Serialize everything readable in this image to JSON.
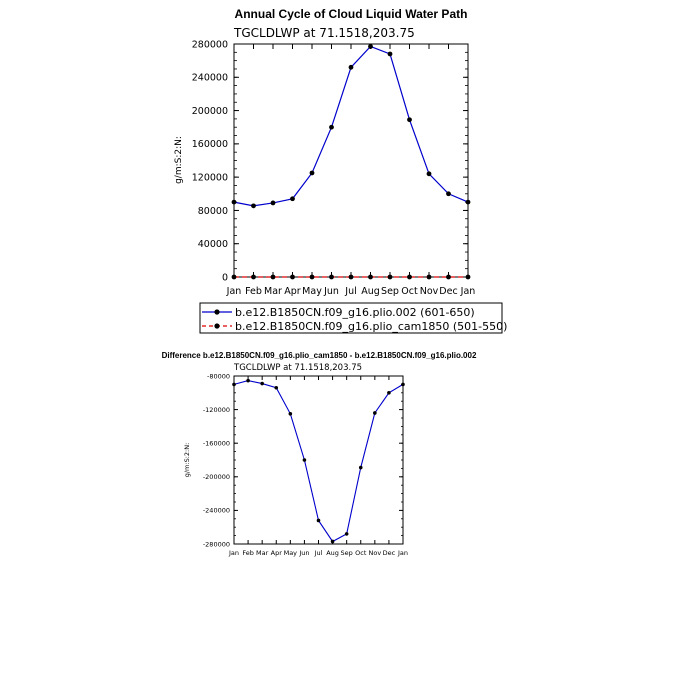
{
  "charts": [
    {
      "title": "Annual Cycle of Cloud Liquid Water Path",
      "subtitle": "TGCLDLWP at 71.1518,203.75",
      "ylabel": "g/m:S:2:N:",
      "chart_type": "line",
      "ylim": [
        0,
        280000
      ],
      "yticks": [
        "0",
        "40000",
        "80000",
        "120000",
        "160000",
        "200000",
        "240000",
        "280000"
      ],
      "yticks_values": [
        0,
        40000,
        80000,
        120000,
        160000,
        200000,
        240000,
        280000
      ],
      "categories": [
        "Jan",
        "Feb",
        "Mar",
        "Apr",
        "May",
        "Jun",
        "Jul",
        "Aug",
        "Sep",
        "Oct",
        "Nov",
        "Dec",
        "Jan"
      ],
      "series": [
        {
          "name": "b.e12.B1850CN.f09_g16.plio.002 (601-650)",
          "color": "#0000cc",
          "dash": "none",
          "values": [
            90000,
            85500,
            89000,
            94000,
            125000,
            180000,
            252000,
            277000,
            268000,
            189000,
            124000,
            100000,
            90000
          ]
        },
        {
          "name": "b.e12.B1850CN.f09_g16.plio_cam1850 (501-550)",
          "color": "#dd0000",
          "dash": "dashed",
          "values": [
            0,
            0,
            0,
            0,
            0,
            0,
            0,
            0,
            0,
            0,
            0,
            0,
            0
          ]
        }
      ]
    },
    {
      "title": "Difference b.e12.B1850CN.f09_g16.plio_cam1850 - b.e12.B1850CN.f09_g16.plio.002",
      "subtitle": "TGCLDLWP at 71.1518,203.75",
      "ylabel": "g/m:S:2:N:",
      "chart_type": "line",
      "ylim": [
        -280000,
        -80000
      ],
      "yticks": [
        "-80000",
        "-120000",
        "-160000",
        "-200000",
        "-240000",
        "-280000"
      ],
      "yticks_values": [
        -80000,
        -120000,
        -160000,
        -200000,
        -240000,
        -280000
      ],
      "categories": [
        "Jan",
        "Feb",
        "Mar",
        "Apr",
        "May",
        "Jun",
        "Jul",
        "Aug",
        "Sep",
        "Oct",
        "Nov",
        "Dec",
        "Jan"
      ],
      "series": [
        {
          "name": "",
          "color": "#0000cc",
          "dash": "none",
          "values": [
            -90000,
            -85500,
            -89000,
            -94000,
            -125000,
            -180000,
            -252000,
            -277000,
            -268000,
            -189000,
            -124000,
            -100000,
            -90000
          ]
        }
      ]
    }
  ],
  "chart_data": [
    {
      "type": "line",
      "title": "Annual Cycle of Cloud Liquid Water Path",
      "subtitle": "TGCLDLWP at 71.1518,203.75",
      "xlabel": "",
      "ylabel": "g/m:S:2:N:",
      "ylim": [
        0,
        280000
      ],
      "categories": [
        "Jan",
        "Feb",
        "Mar",
        "Apr",
        "May",
        "Jun",
        "Jul",
        "Aug",
        "Sep",
        "Oct",
        "Nov",
        "Dec",
        "Jan"
      ],
      "series": [
        {
          "name": "b.e12.B1850CN.f09_g16.plio.002 (601-650)",
          "values": [
            90000,
            85500,
            89000,
            94000,
            125000,
            180000,
            252000,
            277000,
            268000,
            189000,
            124000,
            100000,
            90000
          ]
        },
        {
          "name": "b.e12.B1850CN.f09_g16.plio_cam1850 (501-550)",
          "values": [
            0,
            0,
            0,
            0,
            0,
            0,
            0,
            0,
            0,
            0,
            0,
            0,
            0
          ]
        }
      ],
      "legend": "bottom"
    },
    {
      "type": "line",
      "title": "Difference b.e12.B1850CN.f09_g16.plio_cam1850 - b.e12.B1850CN.f09_g16.plio.002",
      "subtitle": "TGCLDLWP at 71.1518,203.75",
      "xlabel": "",
      "ylabel": "g/m:S:2:N:",
      "ylim": [
        -280000,
        -80000
      ],
      "categories": [
        "Jan",
        "Feb",
        "Mar",
        "Apr",
        "May",
        "Jun",
        "Jul",
        "Aug",
        "Sep",
        "Oct",
        "Nov",
        "Dec",
        "Jan"
      ],
      "series": [
        {
          "values": [
            -90000,
            -85500,
            -89000,
            -94000,
            -125000,
            -180000,
            -252000,
            -277000,
            -268000,
            -189000,
            -124000,
            -100000,
            -90000
          ]
        }
      ]
    }
  ]
}
